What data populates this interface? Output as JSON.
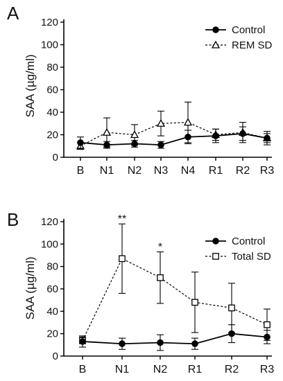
{
  "chart_data": [
    {
      "type": "line",
      "panel_label": "A",
      "categories": [
        "B",
        "N1",
        "N2",
        "N3",
        "N4",
        "R1",
        "R2",
        "R3"
      ],
      "ylabel": "SAA (µg/ml)",
      "ylim": [
        0,
        120
      ],
      "yticks": [
        0,
        20,
        40,
        60,
        80,
        100,
        120
      ],
      "legend_position": "top-right",
      "series": [
        {
          "name": "Control",
          "marker": "filled-circle",
          "line": "solid",
          "values": [
            13,
            11,
            12,
            11,
            18,
            19,
            21,
            17
          ],
          "err_upper": [
            5,
            3,
            3,
            3,
            6,
            6,
            6,
            6
          ],
          "err_lower": [
            5,
            3,
            3,
            3,
            6,
            6,
            6,
            6
          ]
        },
        {
          "name": "REM SD",
          "marker": "open-triangle",
          "line": "dashed",
          "values": [
            10,
            22,
            20,
            30,
            31,
            20,
            22,
            17
          ],
          "err_upper": [
            3,
            13,
            9,
            11,
            18,
            5,
            9,
            4
          ],
          "err_lower": [
            3,
            13,
            9,
            11,
            18,
            5,
            9,
            4
          ]
        }
      ],
      "annotations": []
    },
    {
      "type": "line",
      "panel_label": "B",
      "categories": [
        "B",
        "N1",
        "N2",
        "R1",
        "R2",
        "R3"
      ],
      "ylabel": "SAA (µg/ml)",
      "ylim": [
        0,
        120
      ],
      "yticks": [
        0,
        20,
        40,
        60,
        80,
        100,
        120
      ],
      "legend_position": "top-right",
      "series": [
        {
          "name": "Control",
          "marker": "filled-circle",
          "line": "solid",
          "values": [
            13,
            11,
            12,
            11,
            20,
            17
          ],
          "err_upper": [
            5,
            5,
            7,
            5,
            8,
            6
          ],
          "err_lower": [
            5,
            5,
            7,
            5,
            8,
            6
          ]
        },
        {
          "name": "Total SD",
          "marker": "open-square",
          "line": "dashed",
          "values": [
            14,
            87,
            70,
            48,
            43,
            28
          ],
          "err_upper": [
            3,
            31,
            23,
            27,
            22,
            14
          ],
          "err_lower": [
            3,
            31,
            23,
            27,
            22,
            14
          ]
        }
      ],
      "annotations": [
        {
          "text": "**",
          "category": "N1",
          "above_value": 118
        },
        {
          "text": "*",
          "category": "N2",
          "above_value": 93
        }
      ]
    }
  ]
}
